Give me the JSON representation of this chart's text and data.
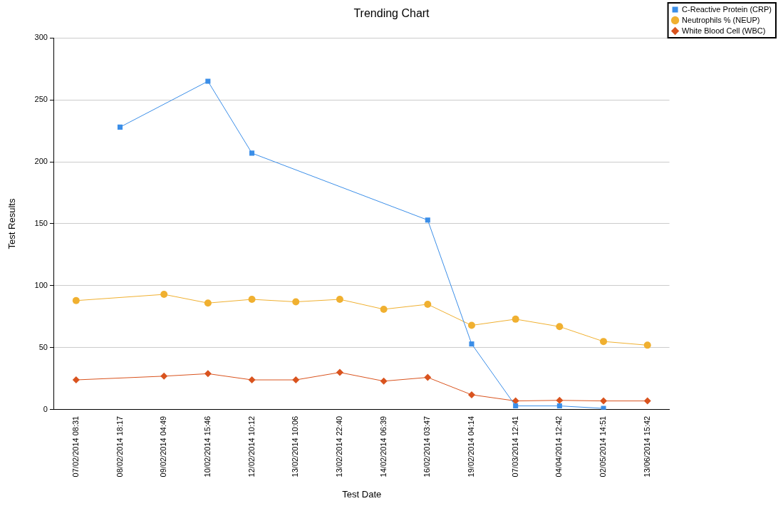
{
  "chart_data": {
    "type": "line",
    "title": "Trending Chart",
    "xlabel": "Test Date",
    "ylabel": "Test Results",
    "categories": [
      "07/02/2014 08:31",
      "08/02/2014 18:17",
      "09/02/2014 04:49",
      "10/02/2014 15:46",
      "12/02/2014 10:12",
      "13/02/2014 10:06",
      "13/02/2014 22:40",
      "14/02/2014 06:39",
      "16/02/2014 03:47",
      "19/02/2014 04:14",
      "07/03/2014 12:41",
      "04/04/2014 12:42",
      "02/05/2014 14:51",
      "13/06/2014 15:42"
    ],
    "series": [
      {
        "name": "C-Reactive Protein (CRP)",
        "color": "#3b8ee8",
        "marker": "square",
        "values": [
          null,
          228,
          null,
          265,
          207,
          null,
          null,
          null,
          153,
          53,
          3,
          3,
          1,
          null
        ]
      },
      {
        "name": "Neutrophils % (NEUP)",
        "color": "#f0b030",
        "marker": "circle",
        "values": [
          88,
          null,
          93,
          86,
          89,
          87,
          89,
          81,
          85,
          68,
          73,
          67,
          55,
          52
        ]
      },
      {
        "name": "White Blood Cell (WBC)",
        "color": "#d9531e",
        "marker": "diamond",
        "values": [
          24,
          null,
          27,
          29,
          24,
          24,
          30,
          23,
          26,
          12,
          7,
          7.5,
          7,
          7
        ]
      }
    ],
    "ylim": [
      0,
      300
    ],
    "yticks": [
      0,
      50,
      100,
      150,
      200,
      250,
      300
    ],
    "grid": "y",
    "legend": "top right",
    "line_style": "solid"
  }
}
